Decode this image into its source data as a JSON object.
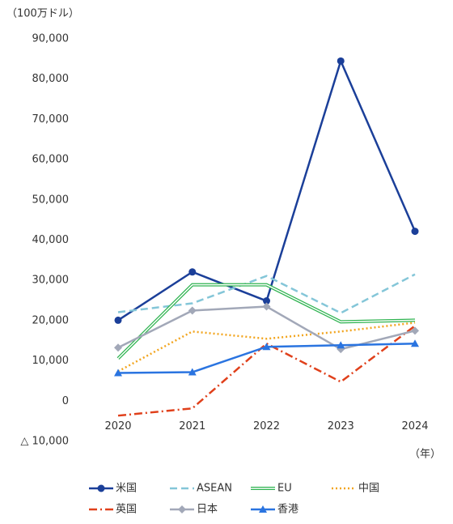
{
  "chart_data": {
    "type": "line",
    "y_unit": "（100万ドル）",
    "x_unit": "（年）",
    "categories": [
      "2020",
      "2021",
      "2022",
      "2023",
      "2024"
    ],
    "ylim": [
      -10000,
      90000
    ],
    "yticks": [
      {
        "value": -10000,
        "label": "△ 10,000"
      },
      0,
      {
        "value": 10000,
        "label": "10,000"
      },
      {
        "value": 20000,
        "label": "20,000"
      },
      {
        "value": 30000,
        "label": "30,000"
      },
      {
        "value": 40000,
        "label": "40,000"
      },
      {
        "value": 50000,
        "label": "50,000"
      },
      {
        "value": 60000,
        "label": "60,000"
      },
      {
        "value": 70000,
        "label": "70,000"
      },
      {
        "value": 80000,
        "label": "80,000"
      },
      {
        "value": 90000,
        "label": "90,000"
      }
    ],
    "legend": "bottom",
    "series": [
      {
        "name": "米国",
        "color": "#1b3f99",
        "dash": "solid",
        "marker": "circle",
        "values": [
          20100,
          32100,
          24900,
          84500,
          42200
        ]
      },
      {
        "name": "ASEAN",
        "color": "#84c6d8",
        "dash": "dashed",
        "marker": "none",
        "values": [
          22100,
          24300,
          31100,
          21900,
          31500
        ]
      },
      {
        "name": "EU",
        "color": "#2db34f",
        "dash": "double",
        "marker": "none",
        "values": [
          10600,
          28900,
          28900,
          19700,
          20100
        ]
      },
      {
        "name": "中国",
        "color": "#f2a51f",
        "dash": "dotted",
        "marker": "none",
        "values": [
          7400,
          17300,
          15500,
          17300,
          19500
        ]
      },
      {
        "name": "英国",
        "color": "#e0401b",
        "dash": "dashdot",
        "marker": "none",
        "values": [
          -3600,
          -1800,
          14300,
          4800,
          18700
        ]
      },
      {
        "name": "日本",
        "color": "#a2a8b8",
        "dash": "solid",
        "marker": "diamond",
        "values": [
          13300,
          22500,
          23500,
          12900,
          17500
        ]
      },
      {
        "name": "香港",
        "color": "#2a74e0",
        "dash": "solid",
        "marker": "triangle",
        "values": [
          7000,
          7200,
          13500,
          13900,
          14300
        ]
      }
    ]
  }
}
